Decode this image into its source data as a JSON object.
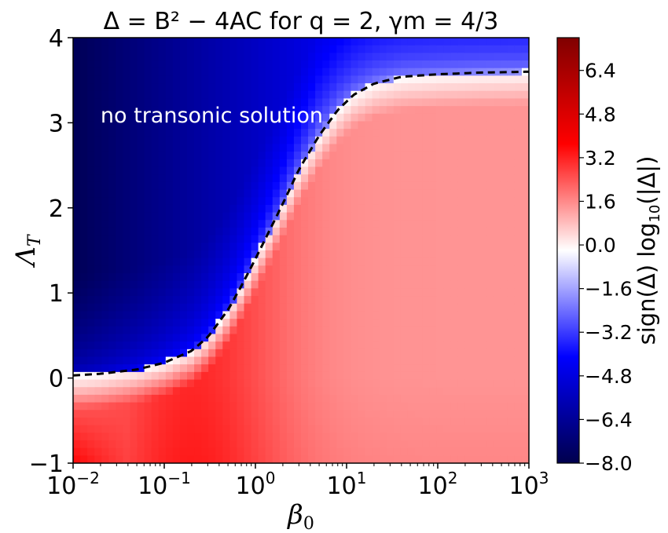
{
  "chart_data": {
    "type": "heatmap",
    "title": "Δ = B² − 4AC for q = 2,  γm = 4/3",
    "xlabel": "β0",
    "ylabel": "ΛT",
    "x_scale": "log",
    "xlim": [
      0.01,
      1000
    ],
    "ylim": [
      -1,
      4
    ],
    "x_ticks": [
      {
        "value": 0.01,
        "base": "10",
        "exp": "−2"
      },
      {
        "value": 0.1,
        "base": "10",
        "exp": "−1"
      },
      {
        "value": 1,
        "base": "10",
        "exp": "0"
      },
      {
        "value": 10,
        "base": "10",
        "exp": "1"
      },
      {
        "value": 100,
        "base": "10",
        "exp": "2"
      },
      {
        "value": 1000,
        "base": "10",
        "exp": "3"
      }
    ],
    "y_ticks": [
      {
        "value": -1,
        "label": "−1"
      },
      {
        "value": 0,
        "label": "0"
      },
      {
        "value": 1,
        "label": "1"
      },
      {
        "value": 2,
        "label": "2"
      },
      {
        "value": 3,
        "label": "3"
      },
      {
        "value": 4,
        "label": "4"
      }
    ],
    "colorbar": {
      "label": "sign(Δ) log10(|Δ|)",
      "colormap": "seismic",
      "range": [
        -8.0,
        7.6
      ],
      "ticks": [
        {
          "value": 6.4,
          "label": "6.4"
        },
        {
          "value": 4.8,
          "label": "4.8"
        },
        {
          "value": 3.2,
          "label": "3.2"
        },
        {
          "value": 1.6,
          "label": "1.6"
        },
        {
          "value": 0.0,
          "label": "0.0"
        },
        {
          "value": -1.6,
          "label": "−1.6"
        },
        {
          "value": -3.2,
          "label": "−3.2"
        },
        {
          "value": -4.8,
          "label": "−4.8"
        },
        {
          "value": -6.4,
          "label": "−6.4"
        },
        {
          "value": -8.0,
          "label": "−8.0"
        }
      ],
      "colors": [
        "#00004d",
        "#0000ff",
        "#ffffff",
        "#ff0000",
        "#800000"
      ]
    },
    "boundary_curve": {
      "style": "dashed",
      "color": "#000000",
      "points": [
        [
          0.01,
          0.03
        ],
        [
          0.02,
          0.05
        ],
        [
          0.05,
          0.1
        ],
        [
          0.1,
          0.18
        ],
        [
          0.2,
          0.32
        ],
        [
          0.3,
          0.48
        ],
        [
          0.5,
          0.8
        ],
        [
          0.7,
          1.08
        ],
        [
          1.0,
          1.4
        ],
        [
          1.5,
          1.78
        ],
        [
          2.0,
          2.05
        ],
        [
          3.0,
          2.45
        ],
        [
          5.0,
          2.85
        ],
        [
          8.0,
          3.15
        ],
        [
          12.0,
          3.33
        ],
        [
          20.0,
          3.46
        ],
        [
          40.0,
          3.54
        ],
        [
          100.0,
          3.57
        ],
        [
          300.0,
          3.59
        ],
        [
          1000.0,
          3.6
        ]
      ]
    },
    "annotation": {
      "text": "no transonic solution",
      "x": 0.02,
      "y": 3.05
    }
  }
}
